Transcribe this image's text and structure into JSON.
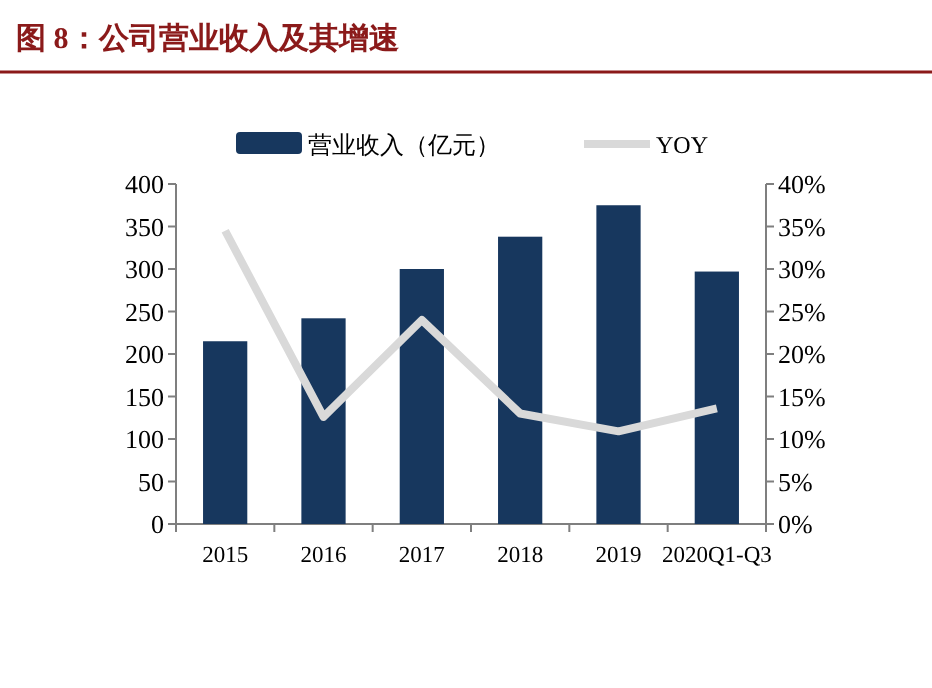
{
  "chart_data": {
    "type": "bar",
    "title": "图 8：公司营业收入及其增速",
    "categories": [
      "2015",
      "2016",
      "2017",
      "2018",
      "2019",
      "2020Q1-Q3"
    ],
    "series": [
      {
        "name": "营业收入（亿元）",
        "color": "#17375e",
        "values": [
          215,
          242,
          300,
          338,
          375,
          297
        ]
      },
      {
        "name": "YOY",
        "type": "line",
        "axis": "y2",
        "color": "#d9d9d9",
        "values": [
          34.5,
          12.6,
          24,
          13,
          10.9,
          13.6
        ]
      }
    ],
    "ylim": [
      0,
      400
    ],
    "yticks": [
      0,
      50,
      100,
      150,
      200,
      250,
      300,
      350,
      400
    ],
    "y2lim": [
      0,
      40
    ],
    "y2ticks": [
      {
        "value": 0,
        "label": "0%"
      },
      {
        "value": 5,
        "label": "5%"
      },
      {
        "value": 10,
        "label": "10%"
      },
      {
        "value": 15,
        "label": "15%"
      },
      {
        "value": 20,
        "label": "20%"
      },
      {
        "value": 25,
        "label": "25%"
      },
      {
        "value": 30,
        "label": "30%"
      },
      {
        "value": 35,
        "label": "35%"
      },
      {
        "value": 40,
        "label": "40%"
      }
    ],
    "legend": "top",
    "grid": false,
    "marker": "none",
    "line_style": "solid"
  }
}
